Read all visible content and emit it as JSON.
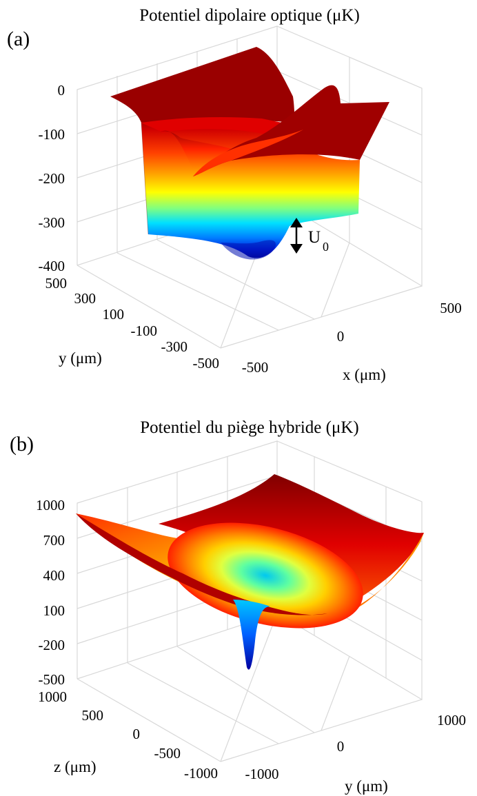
{
  "chart_data": [
    {
      "type": "surface",
      "panel_label": "(a)",
      "title": "Potentiel dipolaire optique (μK)",
      "xlabel": "x (μm)",
      "ylabel": "y (μm)",
      "zlabel": "",
      "xlim": [
        -500,
        500
      ],
      "ylim": [
        -500,
        500
      ],
      "zlim": [
        -400,
        0
      ],
      "x_ticks": [
        "-500",
        "0",
        "500"
      ],
      "y_ticks": [
        "500",
        "300",
        "100",
        "-100",
        "-300",
        "-500"
      ],
      "z_ticks": [
        "0",
        "-100",
        "-200",
        "-300",
        "-400"
      ],
      "colormap": "jet",
      "grid": true,
      "surface_summary": {
        "plateau": 0,
        "trench_floor": -300,
        "dip_minimum": -380,
        "ridge_peak": -20
      },
      "annotation": {
        "text": "U",
        "subscript": "0"
      }
    },
    {
      "type": "surface",
      "panel_label": "(b)",
      "title": "Potentiel du piège hybride (μK)",
      "xlabel": "y (μm)",
      "ylabel": "z (μm)",
      "zlabel": "",
      "xlim": [
        -1000,
        1000
      ],
      "ylim": [
        -1000,
        1000
      ],
      "zlim": [
        -500,
        1000
      ],
      "x_ticks": [
        "-1000",
        "0",
        "1000"
      ],
      "y_ticks": [
        "1000",
        "500",
        "0",
        "-500",
        "-1000"
      ],
      "z_ticks": [
        "1000",
        "700",
        "400",
        "100",
        "-200",
        "-500"
      ],
      "colormap": "jet",
      "grid": true,
      "surface_summary": {
        "corner_max": 1000,
        "bowl_center": 100,
        "well_minimum": -450
      }
    }
  ]
}
